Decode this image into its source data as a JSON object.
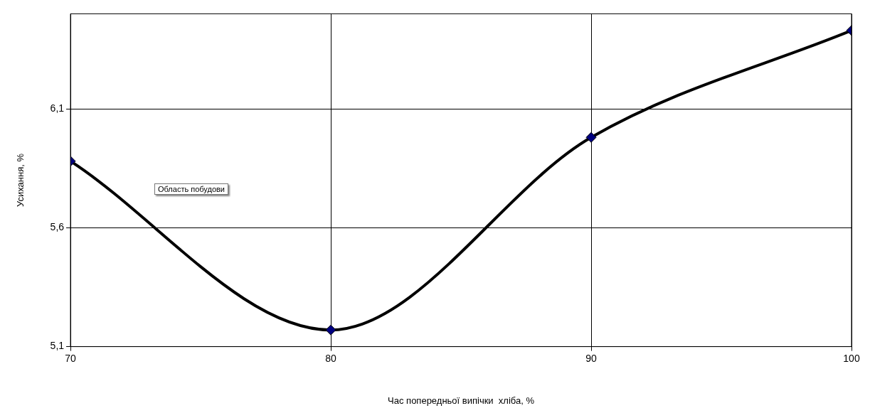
{
  "chart_data": {
    "type": "line",
    "xlabel": "Час попередньої випічки  хліба, %",
    "ylabel": "Усихання, %",
    "x": [
      70,
      80,
      90,
      100
    ],
    "series": [
      {
        "color": "#000000",
        "values": [
          5.88,
          5.17,
          5.98,
          6.43
        ]
      }
    ],
    "xlim": [
      70,
      100
    ],
    "xticks": [
      70,
      80,
      90,
      100
    ],
    "ylim": [
      5.1,
      6.5
    ],
    "yticks": [
      {
        "value": 5.1,
        "label": "5,1"
      },
      {
        "value": 5.6,
        "label": "5,6"
      },
      {
        "value": 6.1,
        "label": "6,1"
      }
    ],
    "grid": true,
    "legend": false,
    "marker": "diamond",
    "line_style": "solid",
    "annotations": [
      "Область побудови"
    ]
  }
}
